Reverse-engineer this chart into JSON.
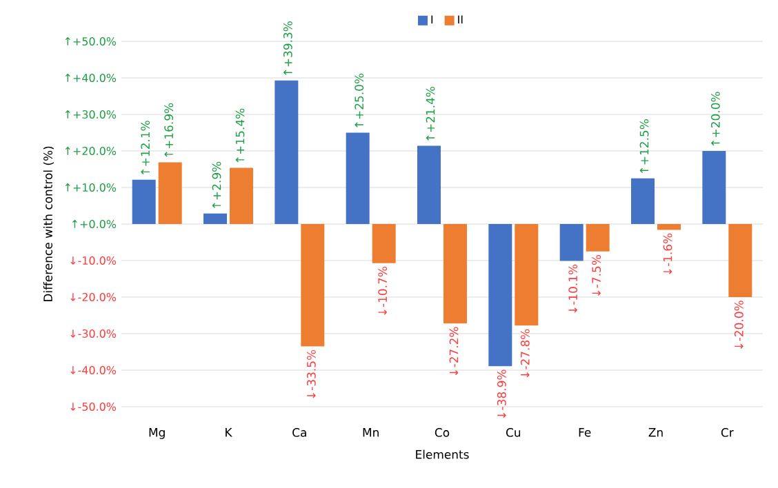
{
  "chart_data": {
    "type": "bar",
    "xlabel": "Elements",
    "ylabel": "Difference with control (%)",
    "categories": [
      "Mg",
      "K",
      "Ca",
      "Mn",
      "Co",
      "Cu",
      "Fe",
      "Zn",
      "Cr"
    ],
    "series": [
      {
        "name": "I",
        "color": "#4472c4",
        "values": [
          12.1,
          2.9,
          39.3,
          25.0,
          21.4,
          -38.9,
          -10.1,
          12.5,
          20.0
        ],
        "value_labels": [
          "↑+12.1%",
          "↑+2.9%",
          "↑+39.3%",
          "↑+25.0%",
          "↑+21.4%",
          "↓-38.9%",
          "↓-10.1%",
          "↑+12.5%",
          "↑+20.0%"
        ]
      },
      {
        "name": "II",
        "color": "#ed7d31",
        "values": [
          16.9,
          15.4,
          -33.5,
          -10.7,
          -27.2,
          -27.8,
          -7.5,
          -1.6,
          -20.0
        ],
        "value_labels": [
          "↑+16.9%",
          "↑+15.4%",
          "↓-33.5%",
          "↓-10.7%",
          "↓-27.2%",
          "↓-27.8%",
          "↓-7.5%",
          "↓-1.6%",
          "↓-20.0%"
        ]
      }
    ],
    "ylim": [
      -50,
      50
    ],
    "yticks": [
      {
        "value": -50,
        "label": "↓-50.0%"
      },
      {
        "value": -40,
        "label": "↓-40.0%"
      },
      {
        "value": -30,
        "label": "↓-30.0%"
      },
      {
        "value": -20,
        "label": "↓-20.0%"
      },
      {
        "value": -10,
        "label": "↓-10.0%"
      },
      {
        "value": 0,
        "label": "↑+0.0%"
      },
      {
        "value": 10,
        "label": "↑+10.0%"
      },
      {
        "value": 20,
        "label": "↑+20.0%"
      },
      {
        "value": 30,
        "label": "↑+30.0%"
      },
      {
        "value": 40,
        "label": "↑+40.0%"
      },
      {
        "value": 50,
        "label": "↑+50.0%"
      }
    ],
    "grid": "y",
    "legend": "top"
  }
}
